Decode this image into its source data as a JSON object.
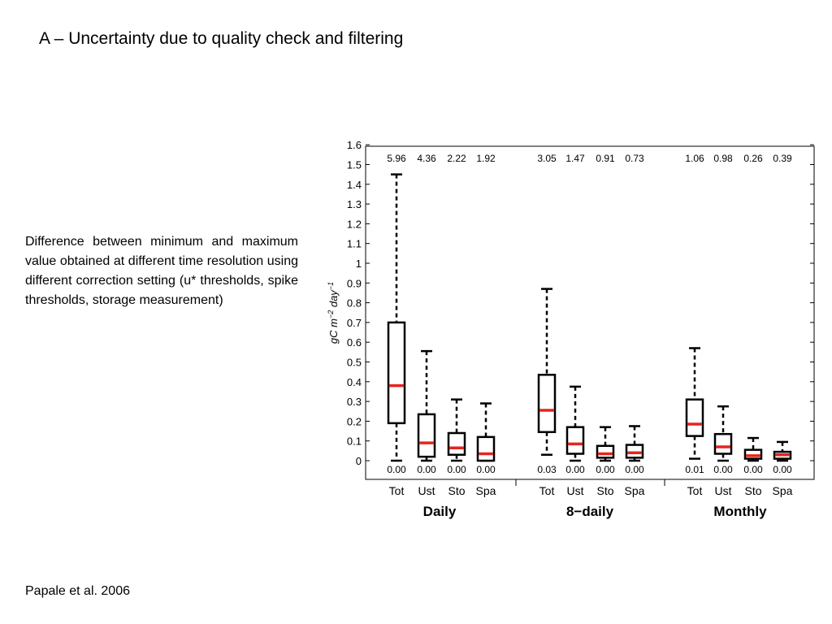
{
  "slide": {
    "title": "A – Uncertainty due to quality check and filtering",
    "description": "Difference between minimum and maximum value obtained at different time resolution using different correction setting (u* thresholds, spike thresholds, storage measurement)",
    "citation": "Papale et al. 2006"
  },
  "chart_data": {
    "type": "box",
    "ylabel": "gC m^-2 day^-1",
    "ylim": [
      0,
      1.6
    ],
    "yticks": [
      0,
      0.1,
      0.2,
      0.3,
      0.4,
      0.5,
      0.6,
      0.7,
      0.8,
      0.9,
      1,
      1.1,
      1.2,
      1.3,
      1.4,
      1.5,
      1.6
    ],
    "grid": false,
    "colors": {
      "box": "#000000",
      "median": "#e8231f"
    },
    "groups": [
      {
        "name": "Daily",
        "boxes": [
          {
            "label": "Tot",
            "min": 0.0,
            "q1": 0.19,
            "median": 0.38,
            "q3": 0.7,
            "max": 1.45,
            "top_label": "5.96",
            "bottom_label": "0.00"
          },
          {
            "label": "Ust",
            "min": 0.0,
            "q1": 0.02,
            "median": 0.09,
            "q3": 0.235,
            "max": 0.555,
            "top_label": "4.36",
            "bottom_label": "0.00"
          },
          {
            "label": "Sto",
            "min": 0.0,
            "q1": 0.03,
            "median": 0.065,
            "q3": 0.14,
            "max": 0.31,
            "top_label": "2.22",
            "bottom_label": "0.00"
          },
          {
            "label": "Spa",
            "min": 0.0,
            "q1": 0.0,
            "median": 0.035,
            "q3": 0.12,
            "max": 0.29,
            "top_label": "1.92",
            "bottom_label": "0.00"
          }
        ]
      },
      {
        "name": "8−daily",
        "boxes": [
          {
            "label": "Tot",
            "min": 0.03,
            "q1": 0.145,
            "median": 0.255,
            "q3": 0.435,
            "max": 0.87,
            "top_label": "3.05",
            "bottom_label": "0.03"
          },
          {
            "label": "Ust",
            "min": 0.0,
            "q1": 0.035,
            "median": 0.085,
            "q3": 0.17,
            "max": 0.375,
            "top_label": "1.47",
            "bottom_label": "0.00"
          },
          {
            "label": "Sto",
            "min": 0.0,
            "q1": 0.015,
            "median": 0.035,
            "q3": 0.075,
            "max": 0.17,
            "top_label": "0.91",
            "bottom_label": "0.00"
          },
          {
            "label": "Spa",
            "min": 0.0,
            "q1": 0.015,
            "median": 0.04,
            "q3": 0.08,
            "max": 0.175,
            "top_label": "0.73",
            "bottom_label": "0.00"
          }
        ]
      },
      {
        "name": "Monthly",
        "boxes": [
          {
            "label": "Tot",
            "min": 0.01,
            "q1": 0.125,
            "median": 0.185,
            "q3": 0.31,
            "max": 0.57,
            "top_label": "1.06",
            "bottom_label": "0.01"
          },
          {
            "label": "Ust",
            "min": 0.0,
            "q1": 0.035,
            "median": 0.07,
            "q3": 0.135,
            "max": 0.275,
            "top_label": "0.98",
            "bottom_label": "0.00"
          },
          {
            "label": "Sto",
            "min": 0.0,
            "q1": 0.01,
            "median": 0.025,
            "q3": 0.055,
            "max": 0.115,
            "top_label": "0.26",
            "bottom_label": "0.00"
          },
          {
            "label": "Spa",
            "min": 0.0,
            "q1": 0.01,
            "median": 0.03,
            "q3": 0.045,
            "max": 0.095,
            "top_label": "0.39",
            "bottom_label": "0.00"
          }
        ]
      }
    ]
  }
}
